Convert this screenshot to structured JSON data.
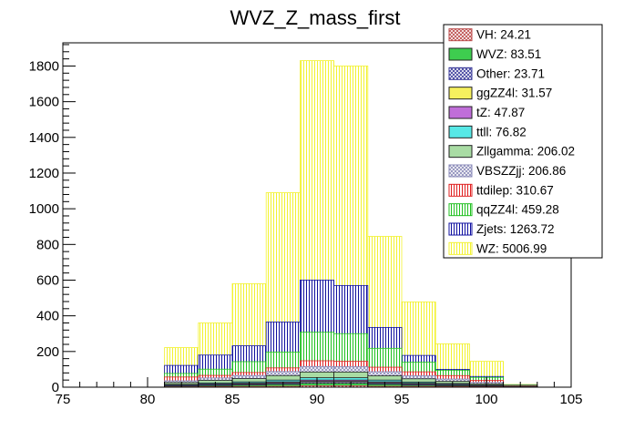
{
  "chart_data": {
    "type": "bar",
    "stacked": true,
    "title": "WVZ_Z_mass_first",
    "xlabel": "",
    "ylabel": "",
    "xlim": [
      75,
      105
    ],
    "ylim": [
      0,
      1930
    ],
    "x_ticks": [
      75,
      80,
      85,
      90,
      95,
      100,
      105
    ],
    "y_ticks": [
      0,
      200,
      400,
      600,
      800,
      1000,
      1200,
      1400,
      1600,
      1800
    ],
    "bin_edges": [
      81,
      83,
      85,
      87,
      89,
      91,
      93,
      95,
      97,
      99,
      101,
      103
    ],
    "cumulative_totals": {
      "VH": [
        2,
        3,
        4,
        5,
        8,
        8,
        5,
        4,
        3,
        2,
        1
      ],
      "WVZ": [
        6,
        9,
        12,
        16,
        22,
        22,
        16,
        11,
        8,
        5,
        2
      ],
      "Other": [
        8,
        12,
        15,
        20,
        27,
        27,
        20,
        14,
        10,
        6,
        2
      ],
      "ggZZ4l": [
        10,
        15,
        19,
        25,
        33,
        33,
        25,
        18,
        13,
        7,
        2
      ],
      "tZ": [
        12,
        18,
        23,
        30,
        40,
        40,
        30,
        22,
        16,
        9,
        3
      ],
      "ttll": [
        16,
        24,
        30,
        40,
        53,
        53,
        40,
        29,
        21,
        12,
        3
      ],
      "Zllgamma": [
        26,
        38,
        48,
        65,
        85,
        85,
        64,
        47,
        33,
        19,
        4
      ],
      "VBSZZjj": [
        36,
        52,
        66,
        88,
        116,
        115,
        87,
        64,
        46,
        27,
        5
      ],
      "ttdilep": [
        57,
        66,
        82,
        108,
        148,
        145,
        112,
        86,
        65,
        38,
        7
      ],
      "qqZZ4l": [
        77,
        101,
        143,
        197,
        308,
        300,
        218,
        140,
        94,
        55,
        10
      ],
      "Zjets": [
        122,
        180,
        232,
        365,
        600,
        570,
        335,
        178,
        100,
        60,
        12
      ],
      "WZ": [
        222,
        360,
        580,
        1090,
        1830,
        1800,
        845,
        478,
        243,
        145,
        15
      ]
    },
    "series": [
      {
        "name": "VH",
        "legend": "VH: 24.21",
        "fill": "#bb4a4a",
        "pattern": "cross"
      },
      {
        "name": "WVZ",
        "legend": "WVZ: 83.51",
        "fill": "#3ecd4f",
        "pattern": "solid"
      },
      {
        "name": "Other",
        "legend": "Other: 23.71",
        "fill": "#3b3b9a",
        "pattern": "cross"
      },
      {
        "name": "ggZZ4l",
        "legend": "ggZZ4l: 31.57",
        "fill": "#f6f05e",
        "pattern": "solid"
      },
      {
        "name": "tZ",
        "legend": "tZ: 47.87",
        "fill": "#c06ed9",
        "pattern": "solid"
      },
      {
        "name": "ttll",
        "legend": "ttll: 76.82",
        "fill": "#57e8e6",
        "pattern": "solid"
      },
      {
        "name": "Zllgamma",
        "legend": "Zllgamma: 206.02",
        "fill": "#a9dca4",
        "pattern": "solid"
      },
      {
        "name": "VBSZZjj",
        "legend": "VBSZZjj: 206.86",
        "fill": "#8a8ab8",
        "pattern": "cross"
      },
      {
        "name": "ttdilep",
        "legend": "ttdilep: 310.67",
        "fill": "#e02020",
        "pattern": "vlines"
      },
      {
        "name": "qqZZ4l",
        "legend": "qqZZ4l: 459.28",
        "fill": "#20c020",
        "pattern": "vlines"
      },
      {
        "name": "Zjets",
        "legend": "Zjets: 1263.72",
        "fill": "#1010a0",
        "pattern": "vlines"
      },
      {
        "name": "WZ",
        "legend": "WZ: 5006.99",
        "fill": "#f2f230",
        "pattern": "vlines"
      }
    ],
    "legend_position": "top-right",
    "grid": false
  }
}
